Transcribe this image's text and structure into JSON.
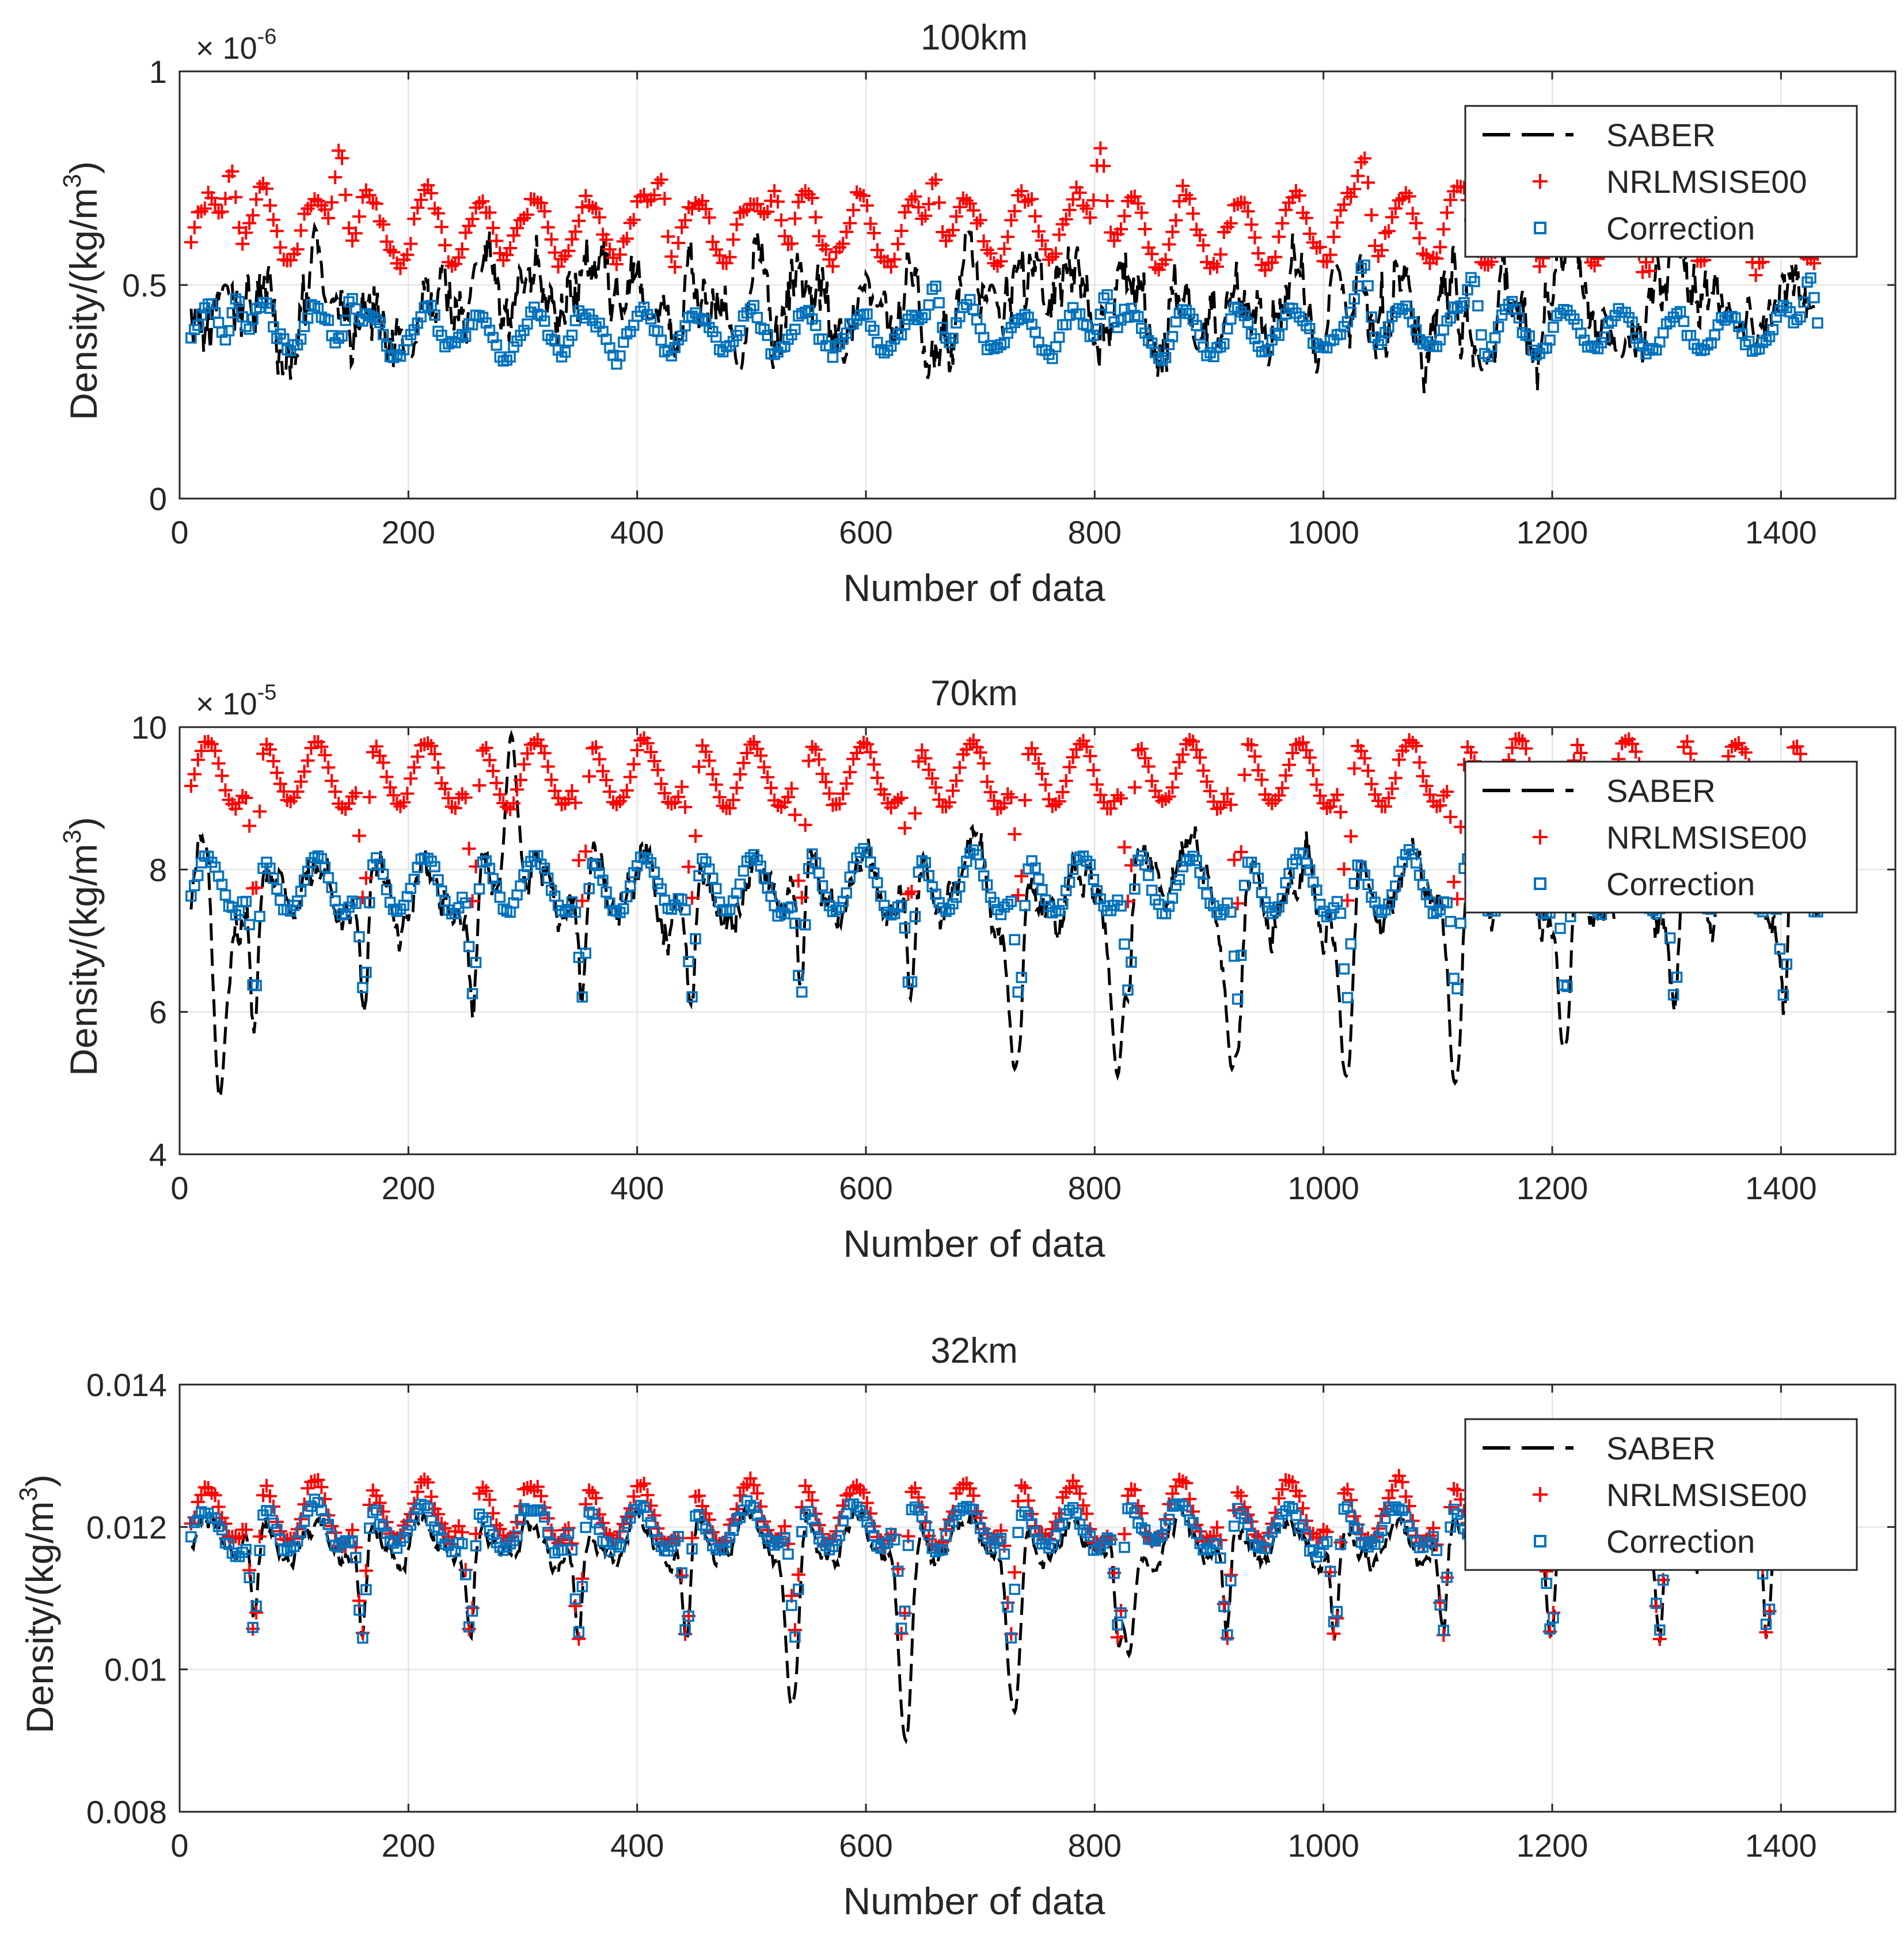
{
  "figure": {
    "colors": {
      "saber": "#000000",
      "nrlmsise00": "#ff0000",
      "correction": "#0072bd",
      "grid": "#e0e0e0",
      "axes": "#262626"
    },
    "legend_location": "top-right"
  },
  "chart_data": [
    {
      "type": "line",
      "title": "100km",
      "xlabel": "Number of data",
      "ylabel": "Density/(kg/m",
      "ylabel_sup": "3",
      "ylabel_close": ")",
      "exponent_text": "× 10",
      "exponent_power": "-6",
      "xlim": [
        0,
        1500
      ],
      "ylim": [
        0,
        1
      ],
      "xticks": [
        0,
        200,
        400,
        600,
        800,
        1000,
        1200,
        1400
      ],
      "xtick_labels": [
        "0",
        "200",
        "400",
        "600",
        "800",
        "1000",
        "1200",
        "1400"
      ],
      "yticks": [
        0,
        0.5,
        1
      ],
      "ytick_labels": [
        "0",
        "0.5",
        "1"
      ],
      "legend": [
        "SABER",
        "NRLMSISE00",
        "Correction"
      ],
      "n_points": 1425,
      "series": [
        {
          "name": "SABER",
          "style": "dashed-line",
          "color": "#000000",
          "mean": 0.45,
          "amplitude": 0.06,
          "noise": 0.09,
          "dip_depth": 0,
          "period": 95,
          "anchors": [
            [
              30,
              0.5
            ],
            [
              120,
              0.45
            ],
            [
              190,
              0.33
            ],
            [
              250,
              0.55
            ],
            [
              400,
              0.42
            ],
            [
              480,
              0.3
            ],
            [
              600,
              0.45
            ],
            [
              700,
              0.5
            ],
            [
              880,
              0.35
            ],
            [
              1000,
              0.55
            ],
            [
              1130,
              0.3
            ],
            [
              1250,
              0.33
            ],
            [
              1350,
              0.4
            ],
            [
              1420,
              0.45
            ]
          ]
        },
        {
          "name": "NRLMSISE00",
          "style": "plus-marker",
          "color": "#ff0000",
          "mean": 0.63,
          "amplitude": 0.08,
          "noise": 0.02,
          "dip_depth": 0,
          "period": 95,
          "anchors": [
            [
              35,
              0.77
            ],
            [
              130,
              0.82
            ],
            [
              410,
              0.75
            ],
            [
              510,
              0.72
            ],
            [
              650,
              0.75
            ],
            [
              795,
              0.82
            ],
            [
              1025,
              0.8
            ],
            [
              1110,
              0.73
            ]
          ]
        },
        {
          "name": "Correction",
          "style": "square-marker",
          "color": "#0072bd",
          "mean": 0.39,
          "amplitude": 0.05,
          "noise": 0.015,
          "dip_depth": 0,
          "period": 95,
          "anchors": [
            [
              40,
              0.47
            ],
            [
              140,
              0.47
            ],
            [
              650,
              0.5
            ],
            [
              800,
              0.48
            ],
            [
              1025,
              0.55
            ],
            [
              1120,
              0.52
            ],
            [
              1415,
              0.52
            ]
          ]
        }
      ]
    },
    {
      "type": "line",
      "title": "70km",
      "xlabel": "Number of data",
      "ylabel": "Density/(kg/m",
      "ylabel_sup": "3",
      "ylabel_close": ")",
      "exponent_text": "× 10",
      "exponent_power": "-5",
      "xlim": [
        0,
        1500
      ],
      "ylim": [
        4,
        10
      ],
      "xticks": [
        0,
        200,
        400,
        600,
        800,
        1000,
        1200,
        1400
      ],
      "xtick_labels": [
        "0",
        "200",
        "400",
        "600",
        "800",
        "1000",
        "1200",
        "1400"
      ],
      "yticks": [
        4,
        6,
        8,
        10
      ],
      "ytick_labels": [
        "4",
        "6",
        "8",
        "10"
      ],
      "legend": [
        "SABER",
        "NRLMSISE00",
        "Correction"
      ],
      "n_points": 1425,
      "series": [
        {
          "name": "SABER",
          "style": "dashed-line",
          "color": "#000000",
          "mean": 7.8,
          "amplitude": 0.4,
          "noise": 0.3,
          "dip_depth": 2.0,
          "period": 95.5,
          "anchors": [
            [
              25,
              4.8
            ],
            [
              280,
              9.9
            ],
            [
              720,
              5.2
            ],
            [
              810,
              5.1
            ],
            [
              910,
              5.2
            ],
            [
              1010,
              5.1
            ],
            [
              1105,
              5.0
            ],
            [
              1200,
              5.5
            ]
          ]
        },
        {
          "name": "NRLMSISE00",
          "style": "plus-marker",
          "color": "#ff0000",
          "mean": 9.35,
          "amplitude": 0.45,
          "noise": 0.05,
          "dip_depth": 2.1,
          "period": 95.5,
          "anchors": []
        },
        {
          "name": "Correction",
          "style": "square-marker",
          "color": "#0072bd",
          "mean": 7.8,
          "amplitude": 0.4,
          "noise": 0.05,
          "dip_depth": 1.85,
          "period": 95.5,
          "anchors": []
        }
      ]
    },
    {
      "type": "line",
      "title": "32km",
      "xlabel": "Number of data",
      "ylabel": "Density/(kg/m",
      "ylabel_sup": "3",
      "ylabel_close": ")",
      "exponent_text": "",
      "exponent_power": "",
      "xlim": [
        0,
        1500
      ],
      "ylim": [
        0.008,
        0.014
      ],
      "xticks": [
        0,
        200,
        400,
        600,
        800,
        1000,
        1200,
        1400
      ],
      "xtick_labels": [
        "0",
        "200",
        "400",
        "600",
        "800",
        "1000",
        "1200",
        "1400"
      ],
      "yticks": [
        0.008,
        0.01,
        0.012,
        0.014
      ],
      "ytick_labels": [
        "0.008",
        "0.01",
        "0.012",
        "0.014"
      ],
      "legend": [
        "SABER",
        "NRLMSISE00",
        "Correction"
      ],
      "n_points": 1400,
      "series": [
        {
          "name": "SABER",
          "style": "dashed-line",
          "color": "#000000",
          "mean": 0.0118,
          "amplitude": 0.0003,
          "noise": 0.00015,
          "dip_depth": 0.0015,
          "period": 94.5,
          "anchors": [
            [
              525,
              0.0095
            ],
            [
              625,
              0.009
            ],
            [
              720,
              0.0094
            ],
            [
              820,
              0.0102
            ]
          ]
        },
        {
          "name": "NRLMSISE00",
          "style": "plus-marker",
          "color": "#ff0000",
          "mean": 0.0122,
          "amplitude": 0.0004,
          "noise": 8e-05,
          "dip_depth": 0.002,
          "period": 94.5,
          "anchors": []
        },
        {
          "name": "Correction",
          "style": "square-marker",
          "color": "#0072bd",
          "mean": 0.012,
          "amplitude": 0.0003,
          "noise": 8e-05,
          "dip_depth": 0.0017,
          "period": 94.5,
          "anchors": []
        }
      ]
    }
  ]
}
